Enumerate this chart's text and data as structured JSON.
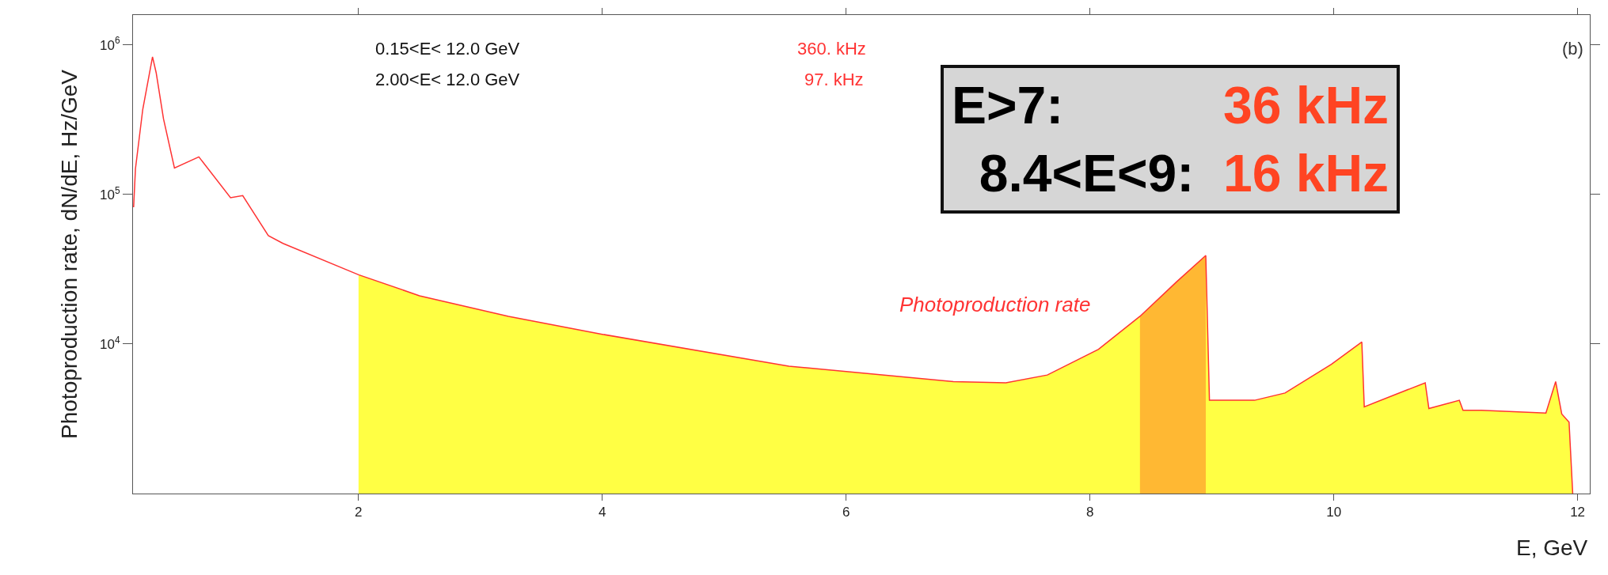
{
  "chart_data": {
    "type": "line",
    "xlabel": "E, GeV",
    "ylabel": "Photoproduction rate, dN/dE, Hz/GeV",
    "annotations": [
      "0.15<E< 12.0 GeV",
      "360. kHz",
      "2.00<E< 12.0 GeV",
      "97. kHz",
      "(b)",
      "E>7:",
      "36 kHz",
      "8.4<E<9:",
      "16 kHz"
    ],
    "series": [
      {
        "type": "area",
        "color": "#ffff44",
        "x": [
          2.0,
          2.5,
          3.23,
          4.0,
          5.53,
          6.88,
          7.31,
          7.65,
          8.07,
          8.41,
          8.71,
          8.95,
          8.98,
          9.35,
          9.6,
          9.98,
          10.23,
          10.25,
          10.75,
          10.78,
          11.03,
          11.06,
          11.21,
          11.74,
          11.82,
          11.87,
          11.93,
          11.96
        ],
        "values": [
          29000,
          21000,
          15300,
          11600,
          7100,
          5600,
          5500,
          6200,
          9200,
          15300,
          26000,
          39000,
          4200,
          4200,
          4700,
          7300,
          10300,
          3800,
          5500,
          3700,
          4200,
          3600,
          3600,
          3450,
          5600,
          3400,
          3000,
          1000
        ]
      },
      {
        "type": "area",
        "color": "#ffb833",
        "x": [
          8.41,
          8.71,
          8.95
        ],
        "values": [
          15300,
          26000,
          39000
        ]
      },
      {
        "name": "Photoproduction rate",
        "color": "#ff3333",
        "x": [
          0.155,
          0.17,
          0.23,
          0.31,
          0.34,
          0.4,
          0.49,
          0.69,
          0.95,
          1.05,
          1.26,
          1.38,
          2.0,
          2.5,
          3.23,
          4.0,
          5.53,
          6.88,
          7.31,
          7.65,
          8.07,
          8.41,
          8.71,
          8.95,
          8.98,
          9.35,
          9.6,
          9.98,
          10.23,
          10.25,
          10.75,
          10.78,
          11.03,
          11.06,
          11.21,
          11.74,
          11.82,
          11.87,
          11.93,
          11.96
        ],
        "values": [
          82000,
          148000,
          370000,
          830000,
          650000,
          320000,
          150000,
          178000,
          95000,
          98000,
          53000,
          47000,
          29000,
          21000,
          15300,
          11600,
          7100,
          5600,
          5500,
          6200,
          9200,
          15300,
          26000,
          39000,
          4200,
          4200,
          4700,
          7300,
          10300,
          3800,
          5500,
          3700,
          4200,
          3600,
          3600,
          3450,
          5600,
          3400,
          3000,
          1000
        ]
      }
    ],
    "log": "y",
    "xlim": [
      0.15,
      12.1
    ],
    "ylim": [
      1000,
      1580000
    ],
    "xticks": [
      2,
      4,
      6,
      8,
      10,
      12
    ],
    "yticks": [
      {
        "value": 10000,
        "label": "10$^{4}$"
      },
      {
        "value": 100000,
        "label": "10$^{5}$"
      },
      {
        "value": 1000000,
        "label": "10$^{6}$"
      }
    ],
    "grid": false,
    "legend": false
  }
}
